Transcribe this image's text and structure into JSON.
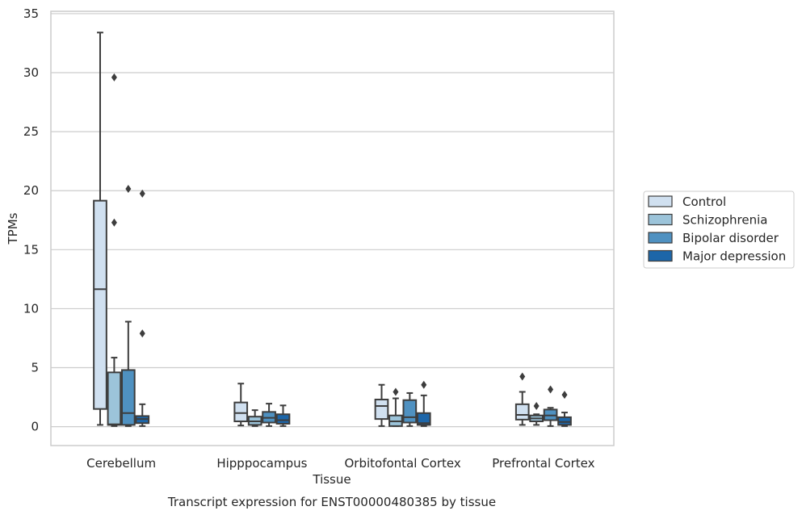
{
  "colors": {
    "Control": "#d0e0f0",
    "Schizophrenia": "#9cc4da",
    "Bipolar disorder": "#4f91c1",
    "Major depression": "#1d66a9",
    "box_edge": "#3d3d3d",
    "grid": "#cccccc",
    "outlier": "#3d3d3d"
  },
  "chart_data": {
    "type": "boxplot",
    "title": "",
    "caption": "Transcript expression for ENST00000480385 by tissue",
    "xlabel": "Tissue",
    "ylabel": "TPMs",
    "ylim": [
      -1.6,
      35.2
    ],
    "yticks": [
      0,
      5,
      10,
      15,
      20,
      25,
      30,
      35
    ],
    "ytick_labels": [
      "0",
      "5",
      "10",
      "15",
      "20",
      "25",
      "30",
      "35"
    ],
    "grid": "horizontal",
    "legend_position": "right-center",
    "categories": [
      "Cerebellum",
      "Hipppocampus",
      "Orbitofontal Cortex",
      "Prefrontal Cortex"
    ],
    "series": [
      {
        "name": "Control",
        "boxes": [
          {
            "whislo": 0.15,
            "q1": 1.5,
            "med": 11.65,
            "q3": 19.15,
            "whishi": 33.4,
            "fliers": []
          },
          {
            "whislo": 0.1,
            "q1": 0.45,
            "med": 1.15,
            "q3": 2.05,
            "whishi": 3.65,
            "fliers": []
          },
          {
            "whislo": 0.05,
            "q1": 0.65,
            "med": 1.75,
            "q3": 2.3,
            "whishi": 3.55,
            "fliers": []
          },
          {
            "whislo": 0.15,
            "q1": 0.6,
            "med": 1.0,
            "q3": 1.9,
            "whishi": 2.95,
            "fliers": [
              4.25
            ]
          }
        ]
      },
      {
        "name": "Schizophrenia",
        "boxes": [
          {
            "whislo": 0.05,
            "q1": 0.15,
            "med": 0.2,
            "q3": 4.6,
            "whishi": 5.85,
            "fliers": [
              17.3,
              29.6
            ]
          },
          {
            "whislo": 0.05,
            "q1": 0.15,
            "med": 0.45,
            "q3": 0.85,
            "whishi": 1.4,
            "fliers": []
          },
          {
            "whislo": 0.05,
            "q1": 0.05,
            "med": 0.45,
            "q3": 0.95,
            "whishi": 2.4,
            "fliers": [
              2.95
            ]
          },
          {
            "whislo": 0.15,
            "q1": 0.45,
            "med": 0.7,
            "q3": 0.95,
            "whishi": 1.05,
            "fliers": [
              1.75
            ]
          }
        ]
      },
      {
        "name": "Bipolar disorder",
        "boxes": [
          {
            "whislo": 0.05,
            "q1": 0.15,
            "med": 1.15,
            "q3": 4.8,
            "whishi": 8.9,
            "fliers": [
              20.15
            ]
          },
          {
            "whislo": 0.05,
            "q1": 0.35,
            "med": 0.75,
            "q3": 1.25,
            "whishi": 1.95,
            "fliers": []
          },
          {
            "whislo": 0.05,
            "q1": 0.35,
            "med": 0.8,
            "q3": 2.25,
            "whishi": 2.85,
            "fliers": []
          },
          {
            "whislo": 0.05,
            "q1": 0.55,
            "med": 0.95,
            "q3": 1.45,
            "whishi": 1.6,
            "fliers": [
              3.15
            ]
          }
        ]
      },
      {
        "name": "Major depression",
        "boxes": [
          {
            "whislo": 0.05,
            "q1": 0.3,
            "med": 0.65,
            "q3": 0.9,
            "whishi": 1.9,
            "fliers": [
              7.9,
              19.75
            ]
          },
          {
            "whislo": 0.05,
            "q1": 0.25,
            "med": 0.55,
            "q3": 1.05,
            "whishi": 1.8,
            "fliers": []
          },
          {
            "whislo": 0.05,
            "q1": 0.15,
            "med": 0.3,
            "q3": 1.15,
            "whishi": 2.65,
            "fliers": [
              3.55
            ]
          },
          {
            "whislo": 0.05,
            "q1": 0.15,
            "med": 0.4,
            "q3": 0.8,
            "whishi": 1.2,
            "fliers": [
              2.7
            ]
          }
        ]
      }
    ]
  }
}
